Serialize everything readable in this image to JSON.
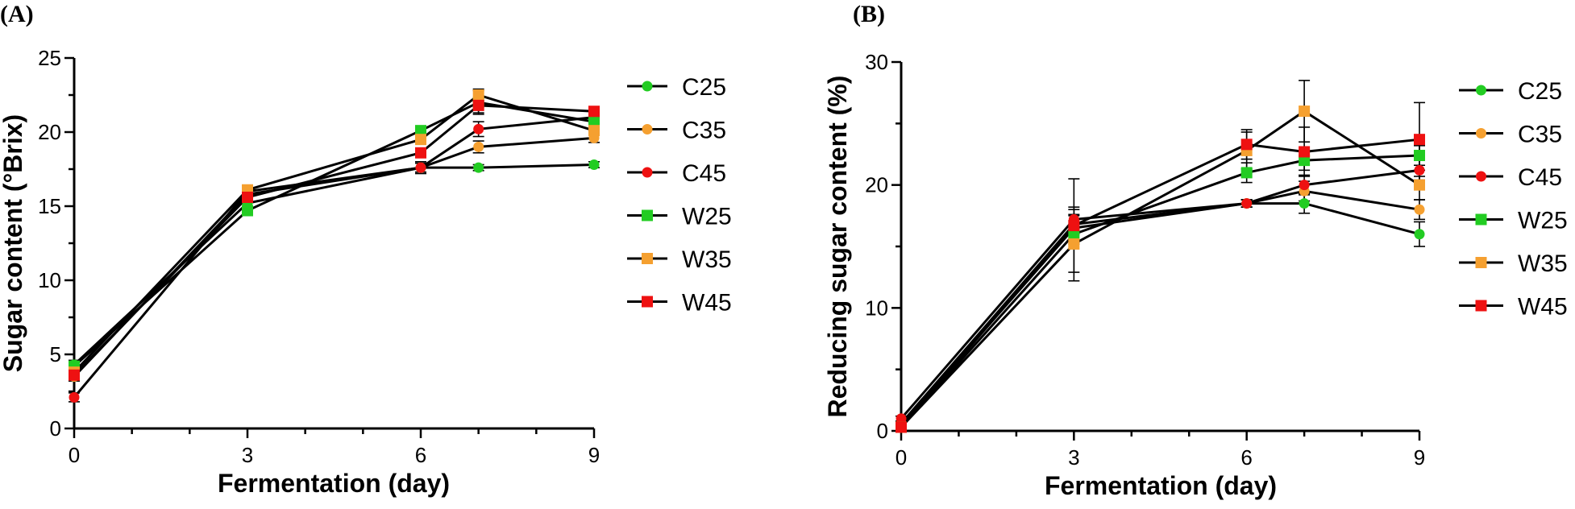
{
  "chart_data": [
    {
      "panel_label": "(A)",
      "type": "line",
      "xlabel": "Fermentation (day)",
      "ylabel": "Sugar content (°Brix)",
      "xlim": [
        0,
        9
      ],
      "ylim": [
        0,
        25
      ],
      "xticks": [
        0,
        3,
        6,
        9
      ],
      "yticks": [
        0,
        5,
        10,
        15,
        20,
        25
      ],
      "x": [
        0,
        3,
        6,
        7,
        9
      ],
      "grid": false,
      "legend": "right",
      "series": [
        {
          "name": "C25",
          "marker": "circle",
          "color": "#22cc22",
          "values": [
            4.3,
            15.2,
            17.6,
            17.6,
            17.8
          ],
          "errors": [
            0.3,
            0.3,
            0.4,
            0.2,
            0.2
          ]
        },
        {
          "name": "C35",
          "marker": "circle",
          "color": "#f5a030",
          "values": [
            3.5,
            15.8,
            17.6,
            19.0,
            19.6
          ],
          "errors": [
            0.3,
            0.3,
            0.3,
            0.4,
            0.3
          ]
        },
        {
          "name": "C45",
          "marker": "circle",
          "color": "#ee1111",
          "values": [
            2.1,
            16.0,
            17.6,
            20.2,
            21.0
          ],
          "errors": [
            0.3,
            0.3,
            0.3,
            0.5,
            0.3
          ]
        },
        {
          "name": "W25",
          "marker": "square",
          "color": "#22cc22",
          "values": [
            4.2,
            14.7,
            20.1,
            22.0,
            20.7
          ],
          "errors": [
            0.3,
            0.3,
            0.3,
            0.8,
            0.3
          ]
        },
        {
          "name": "W35",
          "marker": "square",
          "color": "#f5a030",
          "values": [
            3.8,
            16.1,
            19.5,
            22.5,
            20.1
          ],
          "errors": [
            0.3,
            0.3,
            0.3,
            0.4,
            0.3
          ]
        },
        {
          "name": "W45",
          "marker": "square",
          "color": "#ee1111",
          "values": [
            3.6,
            15.6,
            18.6,
            21.8,
            21.4
          ],
          "errors": [
            0.3,
            0.3,
            0.3,
            0.5,
            0.3
          ]
        }
      ]
    },
    {
      "panel_label": "(B)",
      "type": "line",
      "xlabel": "Fermentation (day)",
      "ylabel": "Reducing sugar content (%)",
      "xlim": [
        0,
        9
      ],
      "ylim": [
        0,
        30
      ],
      "xticks": [
        0,
        3,
        6,
        9
      ],
      "yticks": [
        0,
        10,
        20,
        30
      ],
      "x": [
        0,
        3,
        6,
        7,
        9
      ],
      "grid": false,
      "legend": "right",
      "series": [
        {
          "name": "C25",
          "marker": "circle",
          "color": "#22cc22",
          "values": [
            0.5,
            16.5,
            18.5,
            18.5,
            16.0
          ],
          "errors": [
            0.2,
            1.0,
            0.3,
            0.8,
            1.0
          ]
        },
        {
          "name": "C35",
          "marker": "circle",
          "color": "#f5a030",
          "values": [
            0.6,
            16.8,
            18.5,
            19.5,
            18.0
          ],
          "errors": [
            0.2,
            0.8,
            0.3,
            0.8,
            0.8
          ]
        },
        {
          "name": "C45",
          "marker": "circle",
          "color": "#ee1111",
          "values": [
            1.0,
            17.2,
            18.5,
            20.0,
            21.2
          ],
          "errors": [
            0.2,
            0.8,
            0.3,
            0.8,
            0.8
          ]
        },
        {
          "name": "W25",
          "marker": "square",
          "color": "#22cc22",
          "values": [
            0.3,
            16.0,
            21.0,
            22.0,
            22.4
          ],
          "errors": [
            0.2,
            0.8,
            0.8,
            0.8,
            0.8
          ]
        },
        {
          "name": "W35",
          "marker": "square",
          "color": "#f5a030",
          "values": [
            0.3,
            15.2,
            22.8,
            26.0,
            20.0
          ],
          "errors": [
            0.2,
            3.0,
            1.5,
            2.5,
            1.2
          ]
        },
        {
          "name": "W45",
          "marker": "square",
          "color": "#ee1111",
          "values": [
            0.3,
            16.7,
            23.3,
            22.7,
            23.7
          ],
          "errors": [
            0.2,
            3.8,
            1.2,
            2.0,
            3.0
          ]
        }
      ]
    }
  ]
}
